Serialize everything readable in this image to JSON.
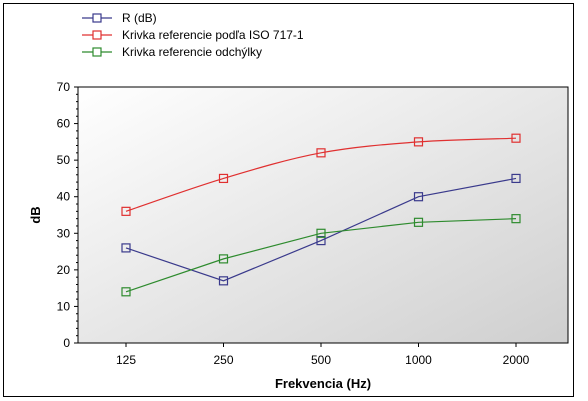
{
  "chart_data": {
    "type": "line",
    "title": "",
    "xlabel": "Frekvencia (Hz)",
    "ylabel": "dB",
    "categories": [
      "125",
      "250",
      "500",
      "1000",
      "2000"
    ],
    "ylim": [
      0,
      70
    ],
    "yticks": [
      0,
      10,
      20,
      30,
      40,
      50,
      60,
      70
    ],
    "grid": false,
    "legend_position": "top-left",
    "series": [
      {
        "name": "R (dB)",
        "color": "#3a3a8c",
        "values": [
          26,
          17,
          28,
          40,
          45
        ]
      },
      {
        "name": "Krivka referencie podľa  ISO 717-1",
        "color": "#e03030",
        "values": [
          36,
          45,
          52,
          55,
          56
        ]
      },
      {
        "name": "Krivka referencie  odchýlky",
        "color": "#2e8b2e",
        "values": [
          14,
          23,
          30,
          33,
          34
        ]
      }
    ]
  }
}
